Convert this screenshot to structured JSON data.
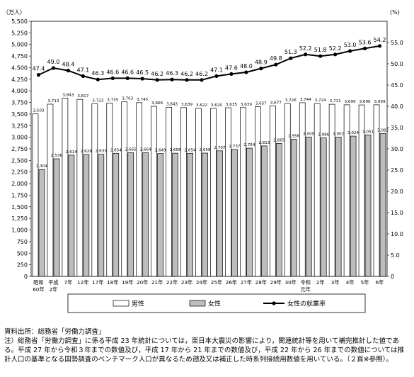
{
  "chart_data": {
    "type": "bar",
    "ylabel_left": "（万人）",
    "ylabel_right": "(%)",
    "ylim": [
      0,
      5500
    ],
    "ylim_right": [
      0,
      60
    ],
    "y_ticks": [
      "0",
      "250",
      "500",
      "750",
      "1,000",
      "1,250",
      "1,500",
      "1,750",
      "2,000",
      "2,250",
      "2,500",
      "2,750",
      "3,000",
      "3,250",
      "3,500",
      "3,750",
      "4,000",
      "4,250",
      "4,500",
      "4,750",
      "5,000",
      "5,250",
      "5,500"
    ],
    "y2_ticks": [
      "0",
      "5.0",
      "10.0",
      "15.0",
      "20.0",
      "25.0",
      "30.0",
      "35.0",
      "40.0",
      "45.0",
      "50.0",
      "55.0"
    ],
    "categories": [
      [
        "昭和",
        "60年"
      ],
      [
        "平成",
        "2年"
      ],
      [
        "7年"
      ],
      [
        "12年"
      ],
      [
        "17年"
      ],
      [
        "18年"
      ],
      [
        "19年"
      ],
      [
        "20年"
      ],
      [
        "21年"
      ],
      [
        "22年"
      ],
      [
        "23年"
      ],
      [
        "24年"
      ],
      [
        "25年"
      ],
      [
        "26年"
      ],
      [
        "27年"
      ],
      [
        "28年"
      ],
      [
        "29年"
      ],
      [
        "30年"
      ],
      [
        "令和",
        "元年"
      ],
      [
        "2年"
      ],
      [
        "3年"
      ],
      [
        "4年"
      ],
      [
        "5年"
      ],
      [
        "6年"
      ]
    ],
    "series": [
      {
        "name": "男性",
        "type": "bar",
        "color": "#ffffff",
        "values": [
          3503,
          3713,
          3843,
          3817,
          3723,
          3735,
          3763,
          3745,
          3666,
          3643,
          3639,
          3622,
          3620,
          3635,
          3639,
          3657,
          3677,
          3726,
          3744,
          3724,
          3711,
          3699,
          3696,
          3699
        ],
        "labels": [
          "3,503",
          "3,713",
          "3,843",
          "3,817",
          "3,723",
          "3,735",
          "3,763",
          "3,745",
          "3,666",
          "3,643",
          "3,639",
          "3,622",
          "3,620",
          "3,635",
          "3,639",
          "3,657",
          "3,677",
          "3,726",
          "3,744",
          "3,724",
          "3,711",
          "3,699",
          "3,696",
          "3,699"
        ]
      },
      {
        "name": "女性",
        "type": "bar",
        "color": "#bdbdbd",
        "values": [
          2304,
          2536,
          2614,
          2629,
          2633,
          2654,
          2665,
          2664,
          2649,
          2656,
          2654,
          2658,
          2707,
          2737,
          2764,
          2813,
          2865,
          2956,
          3005,
          2986,
          3002,
          3024,
          3051,
          3082
        ],
        "labels": [
          "2,304",
          "2,536",
          "2,614",
          "2,629",
          "2,633",
          "2,654",
          "2,665",
          "2,664",
          "2,649",
          "2,656",
          "2,654",
          "2,658",
          "2,707",
          "2,737",
          "2,764",
          "2,813",
          "2,865",
          "2,956",
          "3,005",
          "2,986",
          "3,002",
          "3,024",
          "3,051",
          "3,082"
        ]
      },
      {
        "name": "女性の就業率",
        "type": "line",
        "axis": "right",
        "color": "#000000",
        "values": [
          47.4,
          49.0,
          48.4,
          47.1,
          46.3,
          46.6,
          46.6,
          46.5,
          46.2,
          46.3,
          46.2,
          46.2,
          47.1,
          47.6,
          48.0,
          48.9,
          49.8,
          51.3,
          52.2,
          51.8,
          52.2,
          53.0,
          53.6,
          54.2
        ],
        "labels": [
          "47.4",
          "49.0",
          "48.4",
          "47.1",
          "46.3",
          "46.6",
          "46.6",
          "46.5",
          "46.2",
          "46.3",
          "46.2",
          "46.2",
          "47.1",
          "47.6",
          "48.0",
          "48.9",
          "49.8",
          "51.3",
          "52.2",
          "51.8",
          "52.2",
          "53.0",
          "53.6",
          "54.2"
        ]
      }
    ],
    "legend_position": "bottom",
    "grid": false
  },
  "footer": {
    "source": "資料出所：総務省「労働力調査」",
    "note": "注）総務省「労働力調査」に係る平成 23 年統計については，東日本大震災の影響により，関連統計等を用いて補完推計した値である。平成 27 年から令和３年までの数値及び，平成 17 年から 21 年までの数値及び，平成 22 年から 26 年までの数値については推計人口の基準となる国勢調査のベンチマーク人口が異なるため遡及又は補正した時系列接続用数値を用いている。（２頁※参照）。"
  }
}
